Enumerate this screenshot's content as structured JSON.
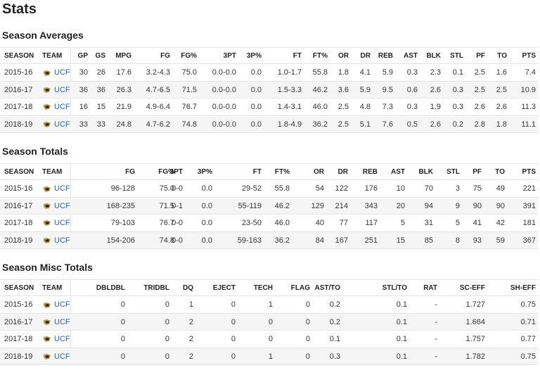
{
  "title": "Stats",
  "sections": [
    {
      "title": "Season Averages",
      "headers": [
        "SEASON",
        "TEAM",
        "GP",
        "GS",
        "MPG",
        "FG",
        "FG%",
        "3PT",
        "3P%",
        "FT",
        "FT%",
        "OR",
        "DR",
        "REB",
        "AST",
        "BLK",
        "STL",
        "PF",
        "TO",
        "PTS"
      ],
      "rows": [
        [
          "2015-16",
          "UCF",
          "30",
          "26",
          "17.6",
          "3.2-4.3",
          "75.0",
          "0.0-0.0",
          "0.0",
          "1.0-1.7",
          "55.8",
          "1.8",
          "4.1",
          "5.9",
          "0.3",
          "2.3",
          "0.1",
          "2.5",
          "1.6",
          "7.4"
        ],
        [
          "2016-17",
          "UCF",
          "36",
          "36",
          "26.3",
          "4.7-6.5",
          "71.5",
          "0.0-0.0",
          "0.0",
          "1.5-3.3",
          "46.2",
          "3.6",
          "5.9",
          "9.5",
          "0.6",
          "2.6",
          "0.3",
          "2.5",
          "2.5",
          "10.9"
        ],
        [
          "2017-18",
          "UCF",
          "16",
          "15",
          "21.9",
          "4.9-6.4",
          "76.7",
          "0.0-0.0",
          "0.0",
          "1.4-3.1",
          "46.0",
          "2.5",
          "4.8",
          "7.3",
          "0.3",
          "1.9",
          "0.3",
          "2.6",
          "2.6",
          "11.3"
        ],
        [
          "2018-19",
          "UCF",
          "33",
          "33",
          "24.8",
          "4.7-6.2",
          "74.8",
          "0.0-0.0",
          "0.0",
          "1.8-4.9",
          "36.2",
          "2.5",
          "5.1",
          "7.6",
          "0.5",
          "2.6",
          "0.2",
          "2.8",
          "1.8",
          "11.1"
        ]
      ]
    },
    {
      "title": "Season Totals",
      "headers": [
        "SEASON",
        "TEAM",
        "FG",
        "FG%",
        "3PT",
        "3P%",
        "FT",
        "FT%",
        "OR",
        "DR",
        "REB",
        "AST",
        "BLK",
        "STL",
        "PF",
        "TO",
        "PTS"
      ],
      "rows": [
        [
          "2015-16",
          "UCF",
          "96-128",
          "75.0",
          "0-0",
          "0.0",
          "29-52",
          "55.8",
          "54",
          "122",
          "176",
          "10",
          "70",
          "3",
          "75",
          "49",
          "221"
        ],
        [
          "2016-17",
          "UCF",
          "168-235",
          "71.5",
          "0-1",
          "0.0",
          "55-119",
          "46.2",
          "129",
          "214",
          "343",
          "20",
          "94",
          "9",
          "90",
          "90",
          "391"
        ],
        [
          "2017-18",
          "UCF",
          "79-103",
          "76.7",
          "0-0",
          "0.0",
          "23-50",
          "46.0",
          "40",
          "77",
          "117",
          "5",
          "31",
          "5",
          "41",
          "42",
          "181"
        ],
        [
          "2018-19",
          "UCF",
          "154-206",
          "74.8",
          "0-0",
          "0.0",
          "59-163",
          "36.2",
          "84",
          "167",
          "251",
          "15",
          "85",
          "8",
          "93",
          "59",
          "367"
        ]
      ]
    },
    {
      "title": "Season Misc Totals",
      "headers": [
        "SEASON",
        "TEAM",
        "DBLDBL",
        "TRIDBL",
        "DQ",
        "EJECT",
        "TECH",
        "FLAG",
        "AST/TO",
        "STL/TO",
        "RAT",
        "SC-EFF",
        "SH-EFF"
      ],
      "rows": [
        [
          "2015-16",
          "UCF",
          "0",
          "0",
          "1",
          "0",
          "1",
          "0",
          "0.2",
          "0.1",
          "-",
          "1.727",
          "0.75"
        ],
        [
          "2016-17",
          "UCF",
          "0",
          "0",
          "2",
          "0",
          "0",
          "0",
          "0.2",
          "0.1",
          "-",
          "1.664",
          "0.71"
        ],
        [
          "2017-18",
          "UCF",
          "0",
          "0",
          "2",
          "0",
          "0",
          "0",
          "0.1",
          "0.1",
          "-",
          "1.757",
          "0.77"
        ],
        [
          "2018-19",
          "UCF",
          "0",
          "0",
          "2",
          "0",
          "1",
          "0",
          "0.3",
          "0.1",
          "-",
          "1.782",
          "0.75"
        ]
      ]
    }
  ]
}
